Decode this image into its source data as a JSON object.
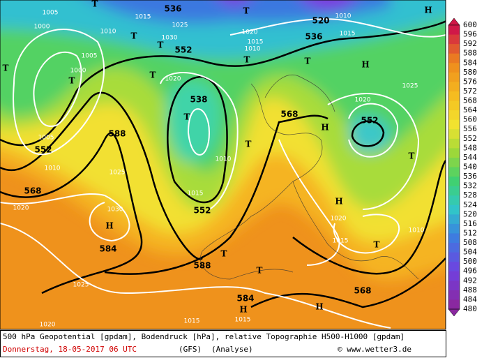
{
  "map": {
    "geopotential_labels": [
      536,
      552,
      538,
      552,
      588,
      552,
      568,
      552,
      584,
      588,
      568,
      584,
      568,
      536,
      520
    ],
    "pressure_labels": [
      1005,
      1000,
      1015,
      1010,
      1025,
      1030,
      1005,
      1000,
      1020,
      1020,
      1015,
      1010,
      1010,
      1015,
      1025,
      1020,
      1005,
      1010,
      1025,
      1015,
      1030,
      1020,
      1020,
      1015,
      1010,
      1025,
      1020,
      1015,
      1015,
      1010
    ],
    "centers": [
      "T",
      "H",
      "T",
      "T",
      "T",
      "T",
      "T",
      "H",
      "T",
      "T",
      "T",
      "H",
      "T",
      "T",
      "H",
      "H",
      "T",
      "T",
      "T",
      "H",
      "H",
      "T"
    ]
  },
  "colorbar": {
    "labels": [
      600,
      596,
      592,
      588,
      584,
      580,
      576,
      572,
      568,
      564,
      560,
      556,
      552,
      548,
      544,
      540,
      536,
      532,
      528,
      524,
      520,
      516,
      512,
      508,
      504,
      500,
      496,
      492,
      488,
      484,
      480
    ]
  },
  "footer": {
    "description": "500 hPa Geopotential [gpdam], Bodendruck [hPa], relative Topographie H500-H1000 [gpdam]",
    "date": "Donnerstag, 18-05-2017  06 UTC",
    "model": "(GFS)",
    "run": "(Analyse)",
    "copyright": "© www.wetter3.de"
  }
}
